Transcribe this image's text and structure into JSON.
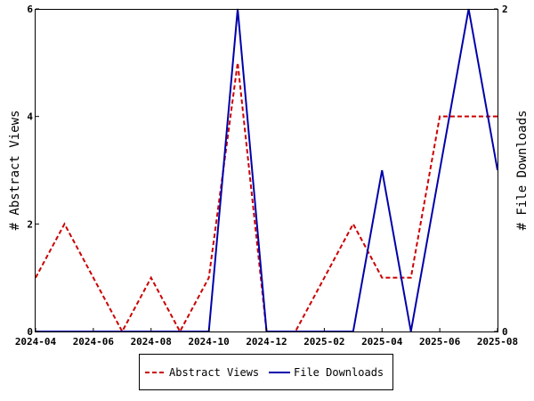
{
  "chart_data": {
    "type": "line",
    "x": [
      "2024-04",
      "2024-05",
      "2024-06",
      "2024-07",
      "2024-08",
      "2024-09",
      "2024-10",
      "2024-11",
      "2024-12",
      "2025-01",
      "2025-02",
      "2025-03",
      "2025-04",
      "2025-05",
      "2025-06",
      "2025-07",
      "2025-08"
    ],
    "xticks": [
      "2024-04",
      "2024-06",
      "2024-08",
      "2024-10",
      "2024-12",
      "2025-02",
      "2025-04",
      "2025-06",
      "2025-08"
    ],
    "xlim": [
      "2024-04",
      "2025-08"
    ],
    "series": [
      {
        "name": "Abstract Views",
        "axis": "left",
        "color": "#cc0000",
        "style": "dashed",
        "values": [
          1,
          2,
          1,
          0,
          1,
          0,
          1,
          5,
          0,
          0,
          1,
          2,
          1,
          1,
          4,
          4,
          4
        ]
      },
      {
        "name": "File Downloads",
        "axis": "right",
        "color": "#0000aa",
        "style": "solid",
        "values": [
          0,
          0,
          0,
          0,
          0,
          0,
          0,
          2,
          0,
          0,
          0,
          0,
          1,
          0,
          1,
          2,
          1
        ]
      }
    ],
    "ylabel": "# Abstract Views",
    "ylim": [
      0,
      6
    ],
    "yticks": [
      0,
      2,
      4,
      6
    ],
    "y2label": "# File Downloads",
    "y2lim": [
      0,
      2
    ],
    "y2ticks": [
      0,
      2
    ],
    "grid": false,
    "legend_position": "bottom"
  }
}
